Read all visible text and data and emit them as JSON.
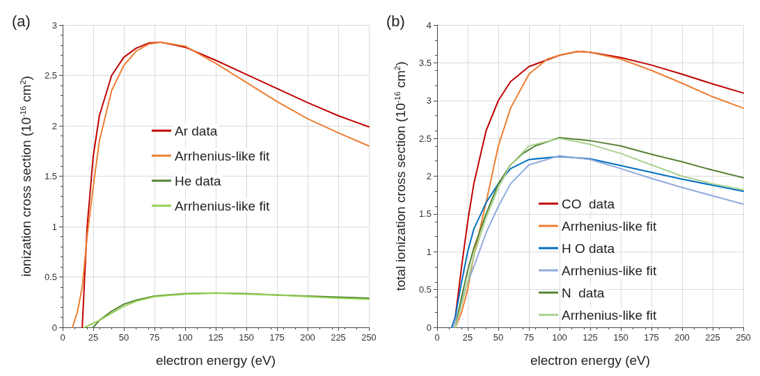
{
  "chart_data": [
    {
      "type": "line",
      "title": "(a)",
      "xlabel": "electron energy (eV)",
      "ylabel": "ionization cross section (10$^{-16}$ cm$^{2}$)",
      "xlim": [
        0,
        250
      ],
      "xticks": [
        0,
        25,
        50,
        75,
        100,
        125,
        150,
        175,
        200,
        225,
        250
      ],
      "ylim": [
        0,
        3
      ],
      "yticks": [
        0,
        0.5,
        1,
        1.5,
        2,
        2.5,
        3
      ],
      "grid": true,
      "legend": "center",
      "marker": "none",
      "line_style": "solid",
      "series": [
        {
          "name": "Ar data",
          "color": "#c00000",
          "x": [
            16,
            18,
            20,
            25,
            30,
            40,
            50,
            60,
            70,
            80,
            100,
            125,
            150,
            175,
            200,
            225,
            250
          ],
          "values": [
            0,
            0.5,
            1.0,
            1.7,
            2.1,
            2.5,
            2.68,
            2.77,
            2.82,
            2.83,
            2.78,
            2.65,
            2.51,
            2.37,
            2.23,
            2.1,
            1.99
          ]
        },
        {
          "name": "Arrhenius-like fit",
          "color": "#ed7d31",
          "x": [
            8,
            12,
            16,
            20,
            25,
            30,
            40,
            50,
            60,
            70,
            80,
            100,
            125,
            150,
            175,
            200,
            225,
            250
          ],
          "values": [
            0,
            0.15,
            0.4,
            0.9,
            1.4,
            1.85,
            2.35,
            2.6,
            2.74,
            2.81,
            2.83,
            2.79,
            2.62,
            2.43,
            2.24,
            2.07,
            1.93,
            1.8
          ]
        },
        {
          "name": "He data",
          "color": "#548235",
          "x": [
            25,
            30,
            40,
            50,
            60,
            75,
            100,
            125,
            150,
            175,
            200,
            225,
            250
          ],
          "values": [
            0,
            0.07,
            0.16,
            0.23,
            0.27,
            0.31,
            0.335,
            0.34,
            0.335,
            0.32,
            0.31,
            0.3,
            0.29
          ]
        },
        {
          "name": "Arrhenius-like fit",
          "color": "#92d050",
          "x": [
            18,
            25,
            30,
            40,
            50,
            60,
            75,
            100,
            125,
            150,
            175,
            200,
            225,
            250
          ],
          "values": [
            0,
            0.04,
            0.07,
            0.14,
            0.21,
            0.26,
            0.305,
            0.33,
            0.34,
            0.33,
            0.32,
            0.305,
            0.29,
            0.28
          ]
        }
      ]
    },
    {
      "type": "line",
      "title": "(b)",
      "xlabel": "electron energy (eV)",
      "ylabel": "total ionization cross section (10$^{-16}$ cm$^{2}$)",
      "xlim": [
        0,
        250
      ],
      "xticks": [
        0,
        25,
        50,
        75,
        100,
        125,
        150,
        175,
        200,
        225,
        250
      ],
      "ylim": [
        0,
        4
      ],
      "yticks": [
        0,
        0.5,
        1,
        1.5,
        2,
        2.5,
        3,
        3.5,
        4
      ],
      "grid": true,
      "legend": "bottom",
      "marker": "none",
      "line_style": "solid",
      "series": [
        {
          "name": "CO  data",
          "color": "#c00000",
          "x": [
            13,
            15,
            20,
            25,
            30,
            40,
            50,
            60,
            75,
            100,
            115,
            125,
            150,
            175,
            200,
            225,
            250
          ],
          "values": [
            0,
            0.15,
            0.8,
            1.4,
            1.9,
            2.6,
            3.0,
            3.25,
            3.45,
            3.6,
            3.65,
            3.64,
            3.57,
            3.47,
            3.35,
            3.22,
            3.1
          ]
        },
        {
          "name": "Arrhenius-like fit",
          "color": "#ed7d31",
          "x": [
            15,
            20,
            25,
            30,
            40,
            50,
            60,
            75,
            90,
            100,
            115,
            125,
            150,
            175,
            200,
            225,
            250
          ],
          "values": [
            0,
            0.2,
            0.5,
            0.95,
            1.65,
            2.4,
            2.9,
            3.35,
            3.55,
            3.6,
            3.65,
            3.64,
            3.55,
            3.4,
            3.23,
            3.05,
            2.9
          ]
        },
        {
          "name": "H O data",
          "color": "#0070c0",
          "x": [
            12,
            15,
            20,
            25,
            30,
            40,
            50,
            60,
            75,
            100,
            125,
            150,
            175,
            200,
            225,
            250
          ],
          "values": [
            0,
            0.15,
            0.6,
            1.0,
            1.3,
            1.65,
            1.9,
            2.1,
            2.22,
            2.26,
            2.23,
            2.14,
            2.05,
            1.96,
            1.88,
            1.8
          ]
        },
        {
          "name": "Arrhenius-like fit",
          "color": "#8faadc",
          "x": [
            13,
            20,
            25,
            30,
            40,
            50,
            60,
            75,
            100,
            125,
            150,
            175,
            200,
            225,
            250
          ],
          "values": [
            0,
            0.35,
            0.6,
            0.8,
            1.25,
            1.6,
            1.9,
            2.15,
            2.27,
            2.22,
            2.1,
            1.97,
            1.85,
            1.74,
            1.63
          ]
        },
        {
          "name": "N  data",
          "color": "#548235",
          "x": [
            15,
            20,
            25,
            30,
            40,
            50,
            60,
            70,
            80,
            100,
            125,
            150,
            175,
            200,
            225,
            250
          ],
          "values": [
            0,
            0.4,
            0.75,
            1.05,
            1.5,
            1.9,
            2.15,
            2.3,
            2.4,
            2.51,
            2.47,
            2.4,
            2.29,
            2.19,
            2.08,
            1.98
          ]
        },
        {
          "name": "Arrhenius-like fit",
          "color": "#a9d18e",
          "x": [
            15,
            20,
            25,
            30,
            40,
            50,
            60,
            75,
            100,
            125,
            150,
            175,
            200,
            225,
            250
          ],
          "values": [
            0,
            0.3,
            0.6,
            0.95,
            1.45,
            1.85,
            2.15,
            2.4,
            2.5,
            2.42,
            2.3,
            2.15,
            2.0,
            1.9,
            1.82
          ]
        }
      ]
    }
  ]
}
